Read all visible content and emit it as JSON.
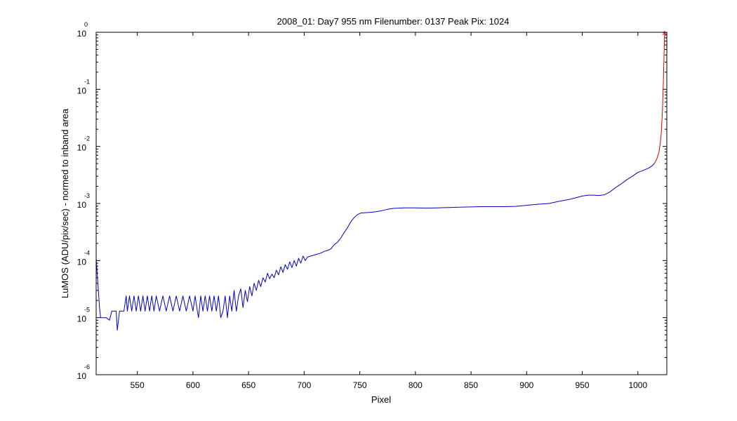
{
  "chart_data": {
    "type": "line",
    "title": "2008_01: Day7  955 nm  Filenumber: 0137 Peak Pix: 1024",
    "xlabel": "Pixel",
    "ylabel": "LuMOS (ADU/pix/sec) - normed to inband area",
    "xlim": [
      513,
      1026
    ],
    "ylim": [
      1e-06,
      1
    ],
    "yscale": "log",
    "x_ticks": [
      550,
      600,
      650,
      700,
      750,
      800,
      850,
      900,
      950,
      1000
    ],
    "x_tick_labels": [
      "550",
      "600",
      "650",
      "700",
      "750",
      "800",
      "850",
      "900",
      "950",
      "1000"
    ],
    "y_ticks": [
      {
        "value": 1,
        "base": "10",
        "exp": "0"
      },
      {
        "value": 0.1,
        "base": "10",
        "exp": "-1"
      },
      {
        "value": 0.01,
        "base": "10",
        "exp": "-2"
      },
      {
        "value": 0.001,
        "base": "10",
        "exp": "-3"
      },
      {
        "value": 0.0001,
        "base": "10",
        "exp": "-4"
      },
      {
        "value": 1e-05,
        "base": "10",
        "exp": "-5"
      },
      {
        "value": 1e-06,
        "base": "10",
        "exp": "-6"
      }
    ],
    "series": [
      {
        "color": "#0000cc",
        "x": [
          513,
          516,
          517,
          519,
          522,
          525,
          527,
          529,
          531,
          532,
          534,
          536,
          538,
          540,
          541,
          543,
          545,
          547,
          549,
          551,
          553,
          555,
          557,
          559,
          561,
          563,
          565,
          567,
          570,
          573,
          576,
          579,
          582,
          585,
          588,
          591,
          594,
          597,
          600,
          602,
          604,
          605,
          607,
          609,
          611,
          613,
          615,
          617,
          619,
          621,
          623,
          625,
          627,
          629,
          631,
          633,
          635,
          637,
          639,
          641,
          643,
          645,
          647,
          649,
          651,
          653,
          655,
          657,
          659,
          661,
          663,
          665,
          667,
          669,
          671,
          673,
          675,
          677,
          679,
          681,
          683,
          685,
          687,
          689,
          691,
          693,
          695,
          697,
          699,
          701,
          703,
          706,
          709,
          712,
          715,
          718,
          721,
          724,
          727,
          730,
          733,
          736,
          739,
          742,
          745,
          748,
          751,
          755,
          760,
          765,
          770,
          775,
          780,
          785,
          790,
          795,
          800,
          810,
          820,
          830,
          840,
          850,
          860,
          870,
          880,
          890,
          900,
          910,
          920,
          930,
          940,
          950,
          955,
          960,
          965,
          970,
          975,
          980,
          985,
          990,
          995,
          1000,
          1005,
          1010,
          1013,
          1015
        ],
        "y": [
          0.00011,
          1.5e-05,
          1e-05,
          1e-05,
          1e-05,
          9e-06,
          1.3e-05,
          1.3e-05,
          1.3e-05,
          6e-06,
          1.3e-05,
          1.3e-05,
          1.3e-05,
          2.4e-05,
          1.3e-05,
          2.4e-05,
          1.3e-05,
          2.4e-05,
          1.3e-05,
          2.4e-05,
          1.3e-05,
          2.4e-05,
          1.3e-05,
          2.4e-05,
          1.3e-05,
          2.4e-05,
          1.3e-05,
          2.4e-05,
          1.3e-05,
          2.4e-05,
          1.3e-05,
          2.4e-05,
          1.3e-05,
          2.4e-05,
          1.3e-05,
          2.4e-05,
          1.3e-05,
          2.4e-05,
          1.3e-05,
          2.4e-05,
          1.3e-05,
          1e-05,
          2.4e-05,
          1.3e-05,
          2.4e-05,
          1.3e-05,
          2.4e-05,
          1.3e-05,
          2.4e-05,
          1.3e-05,
          2.4e-05,
          1e-05,
          1.3e-05,
          2.4e-05,
          1e-05,
          2.4e-05,
          1.3e-05,
          3e-05,
          1.3e-05,
          2.4e-05,
          3.2e-05,
          1.5e-05,
          3e-05,
          1.9e-05,
          3.5e-05,
          2.4e-05,
          4e-05,
          3e-05,
          4.5e-05,
          3.5e-05,
          5e-05,
          4.2e-05,
          6e-05,
          4.8e-05,
          5.8e-05,
          5e-05,
          6.8e-05,
          5.6e-05,
          7.8e-05,
          6.2e-05,
          8.5e-05,
          7e-05,
          9.5e-05,
          7.5e-05,
          0.0001,
          8e-05,
          0.00011,
          9e-05,
          0.00012,
          0.0001,
          0.000115,
          0.00012,
          0.000125,
          0.00013,
          0.000135,
          0.000145,
          0.00015,
          0.00016,
          0.00019,
          0.00021,
          0.00025,
          0.00031,
          0.00038,
          0.00048,
          0.00057,
          0.00064,
          0.00068,
          0.00069,
          0.0007,
          0.00072,
          0.00075,
          0.00079,
          0.00082,
          0.00083,
          0.00084,
          0.00084,
          0.00084,
          0.00083,
          0.00084,
          0.00085,
          0.00086,
          0.00087,
          0.00088,
          0.00088,
          0.00088,
          0.00089,
          0.00093,
          0.00097,
          0.001,
          0.0011,
          0.0012,
          0.00135,
          0.0014,
          0.0014,
          0.00138,
          0.00142,
          0.0016,
          0.0019,
          0.0022,
          0.0026,
          0.003,
          0.0035,
          0.0038,
          0.0042,
          0.0046,
          0.0051
        ]
      },
      {
        "color": "#dd0000",
        "x": [
          1015,
          1017,
          1019,
          1020,
          1021,
          1022,
          1023,
          1024
        ],
        "y": [
          0.0051,
          0.006,
          0.008,
          0.011,
          0.017,
          0.04,
          0.15,
          0.9
        ]
      }
    ],
    "peak_marker": {
      "x": 1024,
      "y": 0.9,
      "symbol": "*",
      "color": "#dd0000"
    }
  }
}
